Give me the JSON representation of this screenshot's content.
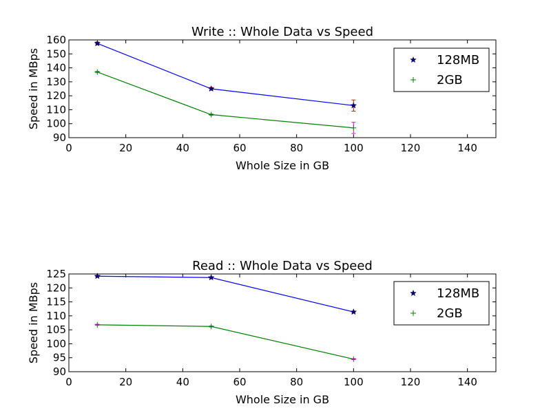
{
  "chart_data": [
    {
      "type": "line",
      "title": "Write :: Whole Data vs Speed",
      "xlabel": "Whole Size in GB",
      "ylabel": "Speed in MBps",
      "xlim": [
        0,
        150
      ],
      "ylim": [
        90,
        160
      ],
      "xticks": [
        0,
        20,
        40,
        60,
        80,
        100,
        120,
        140
      ],
      "yticks": [
        90,
        100,
        110,
        120,
        130,
        140,
        150,
        160
      ],
      "legend_position": "upper right",
      "x": [
        10,
        50,
        100
      ],
      "series": [
        {
          "name": "128MB",
          "values": [
            157.5,
            125,
            113
          ],
          "errors": [
            1,
            1,
            4
          ],
          "color": "#0000ff",
          "error_color": "#ff0000",
          "marker": "star"
        },
        {
          "name": "2GB",
          "values": [
            137,
            106.5,
            97
          ],
          "errors": [
            0.5,
            0.5,
            4
          ],
          "color": "#008000",
          "error_color": "#ff00ff",
          "marker": "plus"
        }
      ]
    },
    {
      "type": "line",
      "title": "Read :: Whole Data vs Speed",
      "xlabel": "Whole Size in GB",
      "ylabel": "Speed in MBps",
      "xlim": [
        0,
        150
      ],
      "ylim": [
        90,
        125
      ],
      "xticks": [
        0,
        20,
        40,
        60,
        80,
        100,
        120,
        140
      ],
      "yticks": [
        90,
        95,
        100,
        105,
        110,
        115,
        120,
        125
      ],
      "legend_position": "upper right",
      "x": [
        10,
        50,
        100
      ],
      "series": [
        {
          "name": "128MB",
          "values": [
            124.2,
            123.7,
            111.4
          ],
          "errors": [
            0.2,
            0.2,
            0.2
          ],
          "color": "#0000ff",
          "error_color": "#ff0000",
          "marker": "star"
        },
        {
          "name": "2GB",
          "values": [
            106.8,
            106.2,
            94.5
          ],
          "errors": [
            0.2,
            0.2,
            0.2
          ],
          "color": "#008000",
          "error_color": "#ff00ff",
          "marker": "plus"
        }
      ]
    }
  ]
}
